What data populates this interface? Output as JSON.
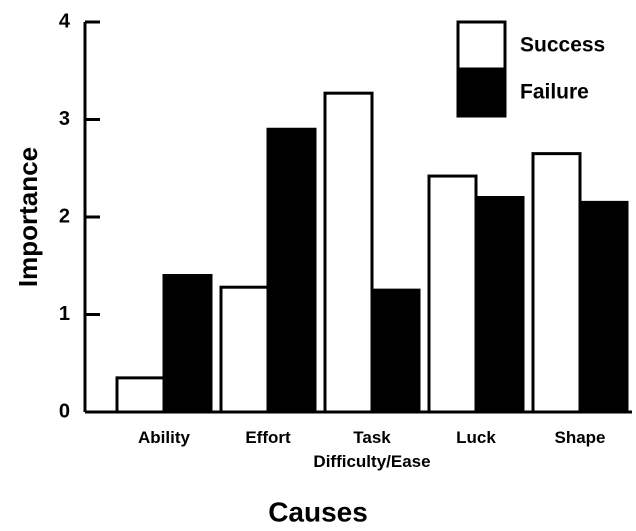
{
  "chart_data": {
    "type": "bar",
    "categories": [
      "Ability",
      "Effort",
      "Task\nDifficulty/Ease",
      "Luck",
      "Shape"
    ],
    "series": [
      {
        "name": "Success",
        "color": "#ffffff",
        "values": [
          0.35,
          1.28,
          3.27,
          2.42,
          2.65
        ]
      },
      {
        "name": "Failure",
        "color": "#000000",
        "values": [
          1.4,
          2.9,
          1.25,
          2.2,
          2.15
        ]
      }
    ],
    "ylim": [
      0,
      4
    ],
    "yticks": [
      0,
      1,
      2,
      3,
      4
    ],
    "y_label": "Importance",
    "x_label": "Causes",
    "legend": "top-right",
    "grid": false
  }
}
